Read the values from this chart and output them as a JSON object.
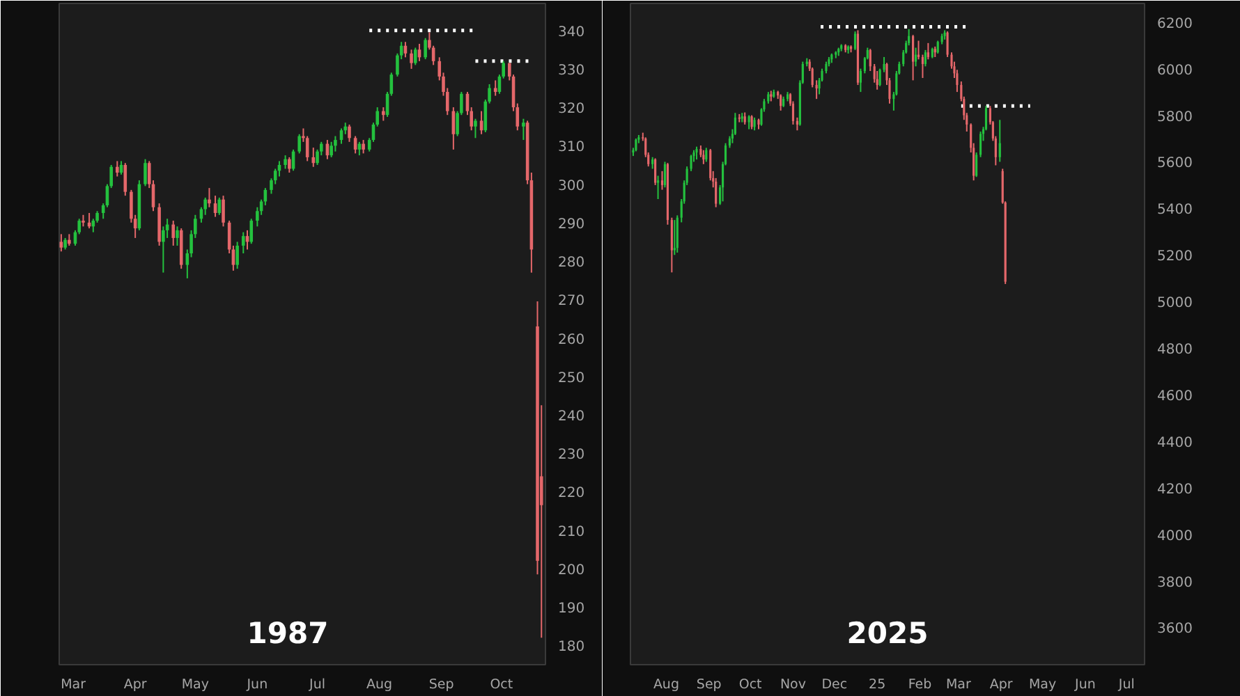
{
  "chart_data": [
    {
      "type": "candlestick",
      "x": [
        "1987-02-23",
        "1987-02-25",
        "1987-02-27",
        "1987-03-02",
        "1987-03-04",
        "1987-03-06",
        "1987-03-09",
        "1987-03-11",
        "1987-03-13",
        "1987-03-16",
        "1987-03-18",
        "1987-03-20",
        "1987-03-23",
        "1987-03-25",
        "1987-03-27",
        "1987-03-30",
        "1987-04-01",
        "1987-04-03",
        "1987-04-06",
        "1987-04-08",
        "1987-04-10",
        "1987-04-13",
        "1987-04-15",
        "1987-04-17",
        "1987-04-20",
        "1987-04-22",
        "1987-04-24",
        "1987-04-27",
        "1987-04-29",
        "1987-05-01",
        "1987-05-04",
        "1987-05-06",
        "1987-05-08",
        "1987-05-11",
        "1987-05-13",
        "1987-05-15",
        "1987-05-18",
        "1987-05-20",
        "1987-05-22",
        "1987-05-25",
        "1987-05-27",
        "1987-05-29",
        "1987-06-01",
        "1987-06-03",
        "1987-06-05",
        "1987-06-08",
        "1987-06-10",
        "1987-06-12",
        "1987-06-15",
        "1987-06-17",
        "1987-06-19",
        "1987-06-22",
        "1987-06-24",
        "1987-06-26",
        "1987-06-29",
        "1987-07-01",
        "1987-07-03",
        "1987-07-06",
        "1987-07-08",
        "1987-07-10",
        "1987-07-13",
        "1987-07-15",
        "1987-07-17",
        "1987-07-20",
        "1987-07-22",
        "1987-07-24",
        "1987-07-27",
        "1987-07-29",
        "1987-07-31",
        "1987-08-03",
        "1987-08-05",
        "1987-08-07",
        "1987-08-10",
        "1987-08-12",
        "1987-08-14",
        "1987-08-17",
        "1987-08-19",
        "1987-08-21",
        "1987-08-24",
        "1987-08-26",
        "1987-08-28",
        "1987-08-31",
        "1987-09-02",
        "1987-09-04",
        "1987-09-07",
        "1987-09-09",
        "1987-09-11",
        "1987-09-14",
        "1987-09-16",
        "1987-09-18",
        "1987-09-21",
        "1987-09-23",
        "1987-09-25",
        "1987-09-28",
        "1987-09-30",
        "1987-10-02",
        "1987-10-05",
        "1987-10-07",
        "1987-10-09",
        "1987-10-12",
        "1987-10-14",
        "1987-10-16",
        "1987-10-19",
        "1987-10-21"
      ],
      "ohlc": [
        [
          285,
          287,
          282.5,
          283.5
        ],
        [
          283.5,
          286,
          283,
          285.5
        ],
        [
          285.5,
          287,
          284,
          284.5
        ],
        [
          284.5,
          288,
          284,
          287.5
        ],
        [
          287.5,
          291,
          287,
          290.5
        ],
        [
          290.5,
          292,
          289,
          290
        ],
        [
          290,
          292.5,
          288.5,
          289
        ],
        [
          289,
          291,
          287.5,
          290.5
        ],
        [
          290.5,
          293,
          290,
          292.5
        ],
        [
          292.5,
          295,
          291,
          294.5
        ],
        [
          294.5,
          300,
          294,
          299.5
        ],
        [
          299.5,
          305,
          299,
          304.5
        ],
        [
          304.5,
          306,
          302,
          303
        ],
        [
          303,
          306,
          302.5,
          305
        ],
        [
          305,
          305.5,
          297,
          298
        ],
        [
          298,
          298.5,
          290,
          291
        ],
        [
          291,
          292,
          286,
          288.5
        ],
        [
          288.5,
          301,
          288,
          300
        ],
        [
          300,
          306.5,
          299.5,
          305.5
        ],
        [
          305.5,
          306,
          299,
          300
        ],
        [
          300,
          301,
          293,
          294
        ],
        [
          294,
          295,
          284,
          285
        ],
        [
          285,
          289,
          277,
          288
        ],
        [
          288,
          291,
          286,
          289.5
        ],
        [
          289.5,
          290.5,
          284,
          286
        ],
        [
          286,
          289,
          284,
          288
        ],
        [
          288,
          288.5,
          278,
          279
        ],
        [
          279,
          283,
          275.5,
          282
        ],
        [
          282,
          288,
          281,
          287
        ],
        [
          287,
          292,
          286,
          291
        ],
        [
          291,
          294,
          290,
          293.5
        ],
        [
          293.5,
          296.5,
          292,
          296
        ],
        [
          296,
          299,
          294,
          295
        ],
        [
          295,
          297,
          291.5,
          292.5
        ],
        [
          292.5,
          296.5,
          292,
          296
        ],
        [
          296,
          297,
          289,
          290
        ],
        [
          290,
          290.5,
          282,
          283
        ],
        [
          283,
          284,
          277.5,
          279
        ],
        [
          279,
          285,
          278,
          284
        ],
        [
          284,
          287.5,
          282,
          286.5
        ],
        [
          286.5,
          288,
          283,
          285
        ],
        [
          285,
          291,
          284.5,
          290.5
        ],
        [
          290.5,
          294,
          289,
          293
        ],
        [
          293,
          296,
          292,
          295.5
        ],
        [
          295.5,
          299,
          294.5,
          298.5
        ],
        [
          298.5,
          301.5,
          297.5,
          301
        ],
        [
          301,
          304,
          300,
          303.5
        ],
        [
          303.5,
          306,
          302,
          305
        ],
        [
          305,
          307.5,
          304,
          306.5
        ],
        [
          306.5,
          307,
          303,
          304
        ],
        [
          304,
          309,
          303.5,
          308.5
        ],
        [
          308.5,
          313,
          308,
          312.5
        ],
        [
          312.5,
          314.5,
          311,
          312
        ],
        [
          312,
          312.5,
          306,
          307
        ],
        [
          307,
          309.5,
          304.5,
          305.5
        ],
        [
          305.5,
          309,
          305,
          308.5
        ],
        [
          308.5,
          311,
          307.5,
          310.5
        ],
        [
          310.5,
          311.5,
          306.5,
          307.5
        ],
        [
          307.5,
          311,
          307,
          310
        ],
        [
          310,
          312.5,
          308.5,
          311.5
        ],
        [
          311.5,
          314.5,
          310.5,
          314
        ],
        [
          314,
          316,
          313,
          315
        ],
        [
          315,
          315.5,
          311,
          312
        ],
        [
          312,
          312.5,
          308,
          309
        ],
        [
          309,
          311,
          307.5,
          310.5
        ],
        [
          310.5,
          311.5,
          308,
          309
        ],
        [
          309,
          312,
          308.5,
          311.5
        ],
        [
          311.5,
          316,
          311,
          315.5
        ],
        [
          315.5,
          320,
          315,
          319
        ],
        [
          319,
          320,
          316.5,
          318
        ],
        [
          318,
          324,
          317.5,
          323.5
        ],
        [
          323.5,
          329,
          323,
          328.5
        ],
        [
          328.5,
          334,
          328,
          333.5
        ],
        [
          333.5,
          337,
          332.5,
          336
        ],
        [
          336,
          337,
          333,
          334
        ],
        [
          334,
          335,
          330,
          331.5
        ],
        [
          331.5,
          335.5,
          331,
          335
        ],
        [
          335,
          336.5,
          332,
          333
        ],
        [
          333,
          338,
          332.5,
          337.5
        ],
        [
          337.5,
          339.5,
          335,
          335.5
        ],
        [
          335.5,
          336,
          331,
          332
        ],
        [
          332,
          333,
          327,
          328
        ],
        [
          328,
          329,
          323,
          324
        ],
        [
          324,
          325,
          318,
          319
        ],
        [
          319,
          320,
          309,
          313
        ],
        [
          313,
          319,
          312.5,
          318.5
        ],
        [
          318.5,
          324,
          318,
          323.5
        ],
        [
          323.5,
          324,
          318,
          319
        ],
        [
          319,
          320,
          314,
          315
        ],
        [
          315,
          317,
          312,
          316.5
        ],
        [
          316.5,
          319,
          313,
          314
        ],
        [
          314,
          322,
          313.5,
          321.5
        ],
        [
          321.5,
          326,
          321,
          325
        ],
        [
          325,
          327,
          323,
          324
        ],
        [
          324,
          328.5,
          323.5,
          328
        ],
        [
          328,
          332,
          327.5,
          331.5
        ],
        [
          331.5,
          331.5,
          327,
          328
        ],
        [
          328,
          328.5,
          319,
          320
        ],
        [
          320,
          321,
          314,
          315
        ],
        [
          315,
          317,
          311.5,
          316
        ],
        [
          316,
          316.5,
          300,
          301
        ],
        [
          301,
          303,
          277,
          283
        ],
        [
          263,
          269.5,
          198.5,
          202
        ],
        [
          224,
          242.5,
          182,
          216.5
        ]
      ],
      "colors": [
        "#e4676a",
        "#24c13e",
        "#e4676a",
        "#24c13e",
        "#24c13e",
        "#e4676a",
        "#e4676a",
        "#24c13e",
        "#24c13e",
        "#24c13e",
        "#24c13e",
        "#24c13e",
        "#e4676a",
        "#24c13e",
        "#e4676a",
        "#e4676a",
        "#e4676a",
        "#24c13e",
        "#24c13e",
        "#e4676a",
        "#e4676a",
        "#e4676a",
        "#24c13e",
        "#24c13e",
        "#e4676a",
        "#24c13e",
        "#e4676a",
        "#24c13e",
        "#24c13e",
        "#24c13e",
        "#24c13e",
        "#24c13e",
        "#e4676a",
        "#e4676a",
        "#24c13e",
        "#e4676a",
        "#e4676a",
        "#e4676a",
        "#24c13e",
        "#24c13e",
        "#e4676a",
        "#24c13e",
        "#24c13e",
        "#24c13e",
        "#24c13e",
        "#24c13e",
        "#24c13e",
        "#24c13e",
        "#24c13e",
        "#e4676a",
        "#24c13e",
        "#24c13e",
        "#e4676a",
        "#e4676a",
        "#e4676a",
        "#24c13e",
        "#24c13e",
        "#e4676a",
        "#24c13e",
        "#24c13e",
        "#24c13e",
        "#24c13e",
        "#e4676a",
        "#e4676a",
        "#24c13e",
        "#e4676a",
        "#24c13e",
        "#24c13e",
        "#24c13e",
        "#e4676a",
        "#24c13e",
        "#24c13e",
        "#24c13e",
        "#24c13e",
        "#e4676a",
        "#e4676a",
        "#24c13e",
        "#e4676a",
        "#24c13e",
        "#e4676a",
        "#e4676a",
        "#e4676a",
        "#e4676a",
        "#e4676a",
        "#e4676a",
        "#24c13e",
        "#24c13e",
        "#e4676a",
        "#e4676a",
        "#24c13e",
        "#e4676a",
        "#24c13e",
        "#24c13e",
        "#e4676a",
        "#24c13e",
        "#24c13e",
        "#e4676a",
        "#e4676a",
        "#e4676a",
        "#24c13e",
        "#e4676a",
        "#e4676a",
        "#e4676a",
        "#e4676a"
      ],
      "series": [
        {
          "type": "line",
          "x": [
            "1987-07-27",
            "1987-09-19"
          ],
          "values": [
            340,
            340
          ],
          "color": "#ffffff",
          "line_style": "dotted"
        },
        {
          "type": "line",
          "x": [
            "1987-09-18",
            "1987-10-17"
          ],
          "values": [
            332,
            332
          ],
          "color": "#ffffff",
          "line_style": "dotted"
        }
      ],
      "xlim": [
        "1987-02-22",
        "1987-10-23"
      ],
      "xticks": [
        {
          "value": "1987-03-01",
          "label": "Mar"
        },
        {
          "value": "1987-04-01",
          "label": "Apr"
        },
        {
          "value": "1987-05-01",
          "label": "May"
        },
        {
          "value": "1987-06-01",
          "label": "Jun"
        },
        {
          "value": "1987-07-01",
          "label": "Jul"
        },
        {
          "value": "1987-08-01",
          "label": "Aug"
        },
        {
          "value": "1987-09-01",
          "label": "Sep"
        },
        {
          "value": "1987-10-01",
          "label": "Oct"
        }
      ],
      "ylim": [
        175,
        347
      ],
      "yticks": [
        180,
        190,
        200,
        210,
        220,
        230,
        240,
        250,
        260,
        270,
        280,
        290,
        300,
        310,
        320,
        330,
        340
      ],
      "annotations": [
        "1987"
      ]
    },
    {
      "type": "candlestick",
      "x": [
        "2024-07-08",
        "2024-07-10",
        "2024-07-12",
        "2024-07-15",
        "2024-07-17",
        "2024-07-19",
        "2024-07-22",
        "2024-07-24",
        "2024-07-26",
        "2024-07-29",
        "2024-07-31",
        "2024-08-02",
        "2024-08-05",
        "2024-08-07",
        "2024-08-09",
        "2024-08-12",
        "2024-08-14",
        "2024-08-16",
        "2024-08-19",
        "2024-08-21",
        "2024-08-23",
        "2024-08-26",
        "2024-08-28",
        "2024-08-30",
        "2024-09-02",
        "2024-09-04",
        "2024-09-06",
        "2024-09-09",
        "2024-09-11",
        "2024-09-13",
        "2024-09-16",
        "2024-09-18",
        "2024-09-20",
        "2024-09-23",
        "2024-09-25",
        "2024-09-27",
        "2024-09-30",
        "2024-10-02",
        "2024-10-04",
        "2024-10-07",
        "2024-10-09",
        "2024-10-11",
        "2024-10-14",
        "2024-10-16",
        "2024-10-18",
        "2024-10-21",
        "2024-10-23",
        "2024-10-25",
        "2024-10-28",
        "2024-10-30",
        "2024-11-01",
        "2024-11-04",
        "2024-11-06",
        "2024-11-08",
        "2024-11-11",
        "2024-11-13",
        "2024-11-15",
        "2024-11-18",
        "2024-11-20",
        "2024-11-22",
        "2024-11-25",
        "2024-11-27",
        "2024-11-29",
        "2024-12-02",
        "2024-12-04",
        "2024-12-06",
        "2024-12-09",
        "2024-12-11",
        "2024-12-13",
        "2024-12-16",
        "2024-12-18",
        "2024-12-20",
        "2024-12-23",
        "2024-12-25",
        "2024-12-27",
        "2024-12-30",
        "2025-01-01",
        "2025-01-03",
        "2025-01-06",
        "2025-01-08",
        "2025-01-10",
        "2025-01-13",
        "2025-01-15",
        "2025-01-17",
        "2025-01-20",
        "2025-01-22",
        "2025-01-24",
        "2025-01-27",
        "2025-01-29",
        "2025-01-31",
        "2025-02-03",
        "2025-02-05",
        "2025-02-07",
        "2025-02-10",
        "2025-02-12",
        "2025-02-14",
        "2025-02-17",
        "2025-02-19",
        "2025-02-21",
        "2025-02-24",
        "2025-02-26",
        "2025-02-28",
        "2025-03-03",
        "2025-03-05",
        "2025-03-07",
        "2025-03-10",
        "2025-03-12",
        "2025-03-14",
        "2025-03-17",
        "2025-03-19",
        "2025-03-21",
        "2025-03-24",
        "2025-03-26",
        "2025-03-28",
        "2025-03-31",
        "2025-04-02",
        "2025-04-04"
      ],
      "ohlc": [
        [
          5640,
          5660,
          5625,
          5650
        ],
        [
          5650,
          5700,
          5645,
          5695
        ],
        [
          5695,
          5715,
          5680,
          5705
        ],
        [
          5705,
          5725,
          5690,
          5700
        ],
        [
          5700,
          5705,
          5620,
          5630
        ],
        [
          5630,
          5640,
          5580,
          5590
        ],
        [
          5590,
          5620,
          5570,
          5610
        ],
        [
          5610,
          5615,
          5500,
          5510
        ],
        [
          5510,
          5540,
          5440,
          5520
        ],
        [
          5520,
          5560,
          5480,
          5500
        ],
        [
          5500,
          5600,
          5490,
          5590
        ],
        [
          5590,
          5595,
          5330,
          5350
        ],
        [
          5350,
          5360,
          5125,
          5220
        ],
        [
          5220,
          5350,
          5200,
          5230
        ],
        [
          5230,
          5370,
          5210,
          5360
        ],
        [
          5360,
          5440,
          5340,
          5430
        ],
        [
          5430,
          5520,
          5420,
          5510
        ],
        [
          5510,
          5580,
          5500,
          5570
        ],
        [
          5570,
          5630,
          5560,
          5625
        ],
        [
          5625,
          5650,
          5600,
          5640
        ],
        [
          5640,
          5665,
          5610,
          5655
        ],
        [
          5655,
          5670,
          5620,
          5630
        ],
        [
          5630,
          5650,
          5590,
          5610
        ],
        [
          5610,
          5660,
          5600,
          5650
        ],
        [
          5650,
          5655,
          5520,
          5530
        ],
        [
          5530,
          5560,
          5490,
          5515
        ],
        [
          5515,
          5530,
          5405,
          5420
        ],
        [
          5420,
          5500,
          5415,
          5490
        ],
        [
          5490,
          5600,
          5430,
          5590
        ],
        [
          5590,
          5680,
          5585,
          5670
        ],
        [
          5670,
          5710,
          5660,
          5700
        ],
        [
          5700,
          5740,
          5680,
          5720
        ],
        [
          5720,
          5810,
          5715,
          5790
        ],
        [
          5790,
          5805,
          5770,
          5785
        ],
        [
          5785,
          5810,
          5770,
          5795
        ],
        [
          5795,
          5812,
          5760,
          5770
        ],
        [
          5770,
          5800,
          5740,
          5795
        ],
        [
          5795,
          5800,
          5740,
          5750
        ],
        [
          5750,
          5790,
          5735,
          5780
        ],
        [
          5780,
          5785,
          5740,
          5760
        ],
        [
          5760,
          5830,
          5755,
          5825
        ],
        [
          5825,
          5870,
          5815,
          5860
        ],
        [
          5860,
          5900,
          5850,
          5890
        ],
        [
          5890,
          5905,
          5860,
          5880
        ],
        [
          5880,
          5910,
          5875,
          5900
        ],
        [
          5900,
          5905,
          5870,
          5885
        ],
        [
          5885,
          5890,
          5820,
          5840
        ],
        [
          5840,
          5880,
          5835,
          5870
        ],
        [
          5870,
          5900,
          5860,
          5890
        ],
        [
          5890,
          5895,
          5840,
          5850
        ],
        [
          5850,
          5860,
          5760,
          5775
        ],
        [
          5775,
          5790,
          5735,
          5760
        ],
        [
          5760,
          5950,
          5755,
          5940
        ],
        [
          5940,
          6030,
          5935,
          6020
        ],
        [
          6020,
          6045,
          6010,
          6030
        ],
        [
          6030,
          6040,
          5990,
          6000
        ],
        [
          6000,
          6005,
          5920,
          5930
        ],
        [
          5930,
          5950,
          5870,
          5915
        ],
        [
          5915,
          5960,
          5890,
          5950
        ],
        [
          5950,
          6000,
          5945,
          5990
        ],
        [
          5990,
          6030,
          5980,
          6020
        ],
        [
          6020,
          6050,
          6010,
          6040
        ],
        [
          6040,
          6065,
          6025,
          6060
        ],
        [
          6060,
          6075,
          6045,
          6070
        ],
        [
          6070,
          6090,
          6055,
          6085
        ],
        [
          6085,
          6105,
          6075,
          6100
        ],
        [
          6100,
          6105,
          6070,
          6080
        ],
        [
          6080,
          6100,
          6065,
          6095
        ],
        [
          6095,
          6100,
          6070,
          6085
        ],
        [
          6085,
          6160,
          6080,
          6150
        ],
        [
          6150,
          6165,
          5930,
          5940
        ],
        [
          5940,
          6000,
          5900,
          5990
        ],
        [
          5990,
          6050,
          5980,
          6045
        ],
        [
          6045,
          6090,
          6040,
          6080
        ],
        [
          6080,
          6085,
          5990,
          6010
        ],
        [
          6010,
          6020,
          5940,
          5955
        ],
        [
          5955,
          5990,
          5910,
          5930
        ],
        [
          5930,
          6000,
          5925,
          5995
        ],
        [
          5995,
          6050,
          5985,
          6020
        ],
        [
          6020,
          6025,
          5930,
          5950
        ],
        [
          5950,
          5960,
          5850,
          5870
        ],
        [
          5870,
          5900,
          5820,
          5890
        ],
        [
          5890,
          5990,
          5885,
          5980
        ],
        [
          5980,
          6030,
          5975,
          6020
        ],
        [
          6020,
          6080,
          6010,
          6070
        ],
        [
          6070,
          6120,
          6065,
          6110
        ],
        [
          6110,
          6170,
          6100,
          6140
        ],
        [
          6140,
          6145,
          5950,
          6030
        ],
        [
          6030,
          6090,
          6010,
          6060
        ],
        [
          6060,
          6120,
          6040,
          6050
        ],
        [
          6050,
          6060,
          5960,
          6020
        ],
        [
          6020,
          6080,
          6010,
          6070
        ],
        [
          6070,
          6110,
          6040,
          6050
        ],
        [
          6050,
          6090,
          6045,
          6085
        ],
        [
          6085,
          6095,
          6050,
          6070
        ],
        [
          6070,
          6120,
          6065,
          6115
        ],
        [
          6115,
          6150,
          6105,
          6140
        ],
        [
          6140,
          6165,
          6125,
          6155
        ],
        [
          6155,
          6160,
          6050,
          6060
        ],
        [
          6060,
          6070,
          6000,
          6010
        ],
        [
          6010,
          6030,
          5960,
          5980
        ],
        [
          5980,
          5995,
          5900,
          5930
        ],
        [
          5930,
          5945,
          5860,
          5870
        ],
        [
          5870,
          5880,
          5780,
          5800
        ],
        [
          5800,
          5810,
          5730,
          5760
        ],
        [
          5760,
          5765,
          5640,
          5660
        ],
        [
          5660,
          5680,
          5520,
          5540
        ],
        [
          5540,
          5640,
          5535,
          5630
        ],
        [
          5630,
          5730,
          5620,
          5720
        ],
        [
          5720,
          5750,
          5690,
          5740
        ],
        [
          5740,
          5840,
          5735,
          5830
        ],
        [
          5830,
          5840,
          5760,
          5770
        ],
        [
          5770,
          5775,
          5690,
          5700
        ],
        [
          5700,
          5710,
          5585,
          5620
        ],
        [
          5620,
          5780,
          5600,
          5680
        ],
        [
          5560,
          5570,
          5420,
          5425
        ],
        [
          5425,
          5430,
          5075,
          5085
        ]
      ],
      "colors": [
        "#24c13e",
        "#24c13e",
        "#24c13e",
        "#e4676a",
        "#e4676a",
        "#e4676a",
        "#24c13e",
        "#e4676a",
        "#24c13e",
        "#e4676a",
        "#24c13e",
        "#e4676a",
        "#e4676a",
        "#24c13e",
        "#24c13e",
        "#24c13e",
        "#24c13e",
        "#24c13e",
        "#24c13e",
        "#24c13e",
        "#24c13e",
        "#e4676a",
        "#e4676a",
        "#24c13e",
        "#e4676a",
        "#e4676a",
        "#e4676a",
        "#24c13e",
        "#24c13e",
        "#24c13e",
        "#24c13e",
        "#24c13e",
        "#24c13e",
        "#e4676a",
        "#24c13e",
        "#e4676a",
        "#24c13e",
        "#e4676a",
        "#24c13e",
        "#e4676a",
        "#24c13e",
        "#24c13e",
        "#24c13e",
        "#e4676a",
        "#24c13e",
        "#e4676a",
        "#e4676a",
        "#24c13e",
        "#24c13e",
        "#e4676a",
        "#e4676a",
        "#e4676a",
        "#24c13e",
        "#24c13e",
        "#24c13e",
        "#e4676a",
        "#e4676a",
        "#e4676a",
        "#24c13e",
        "#24c13e",
        "#24c13e",
        "#24c13e",
        "#24c13e",
        "#24c13e",
        "#24c13e",
        "#24c13e",
        "#e4676a",
        "#24c13e",
        "#e4676a",
        "#24c13e",
        "#e4676a",
        "#24c13e",
        "#24c13e",
        "#24c13e",
        "#e4676a",
        "#e4676a",
        "#e4676a",
        "#24c13e",
        "#24c13e",
        "#e4676a",
        "#e4676a",
        "#24c13e",
        "#24c13e",
        "#24c13e",
        "#24c13e",
        "#24c13e",
        "#24c13e",
        "#e4676a",
        "#24c13e",
        "#e4676a",
        "#e4676a",
        "#24c13e",
        "#e4676a",
        "#24c13e",
        "#e4676a",
        "#24c13e",
        "#24c13e",
        "#24c13e",
        "#e4676a",
        "#e4676a",
        "#e4676a",
        "#e4676a",
        "#e4676a",
        "#e4676a",
        "#e4676a",
        "#e4676a",
        "#e4676a",
        "#24c13e",
        "#24c13e",
        "#24c13e",
        "#24c13e",
        "#e4676a",
        "#e4676a",
        "#e4676a",
        "#24c13e",
        "#e4676a",
        "#e4676a"
      ],
      "series": [
        {
          "type": "line",
          "x": [
            "2024-11-21",
            "2025-03-09"
          ],
          "values": [
            6180,
            6180
          ],
          "color": "#ffffff",
          "line_style": "dotted"
        },
        {
          "type": "line",
          "x": [
            "2025-03-03",
            "2025-04-22"
          ],
          "values": [
            5840,
            5840
          ],
          "color": "#ffffff",
          "line_style": "dotted"
        }
      ],
      "xlim": [
        "2024-07-06",
        "2025-07-14"
      ],
      "xticks": [
        {
          "value": "2024-08-01",
          "label": "Aug"
        },
        {
          "value": "2024-09-01",
          "label": "Sep"
        },
        {
          "value": "2024-10-01",
          "label": "Oct"
        },
        {
          "value": "2024-11-01",
          "label": "Nov"
        },
        {
          "value": "2024-12-01",
          "label": "Dec"
        },
        {
          "value": "2025-01-01",
          "label": "25"
        },
        {
          "value": "2025-02-01",
          "label": "Feb"
        },
        {
          "value": "2025-03-01",
          "label": "Mar"
        },
        {
          "value": "2025-04-01",
          "label": "Apr"
        },
        {
          "value": "2025-05-01",
          "label": "May"
        },
        {
          "value": "2025-06-01",
          "label": "Jun"
        },
        {
          "value": "2025-07-01",
          "label": "Jul"
        }
      ],
      "ylim": [
        3440,
        6280
      ],
      "yticks": [
        3600,
        3800,
        4000,
        4200,
        4400,
        4600,
        4800,
        5000,
        5200,
        5400,
        5600,
        5800,
        6000,
        6200
      ],
      "annotations": [
        "2025"
      ]
    }
  ]
}
